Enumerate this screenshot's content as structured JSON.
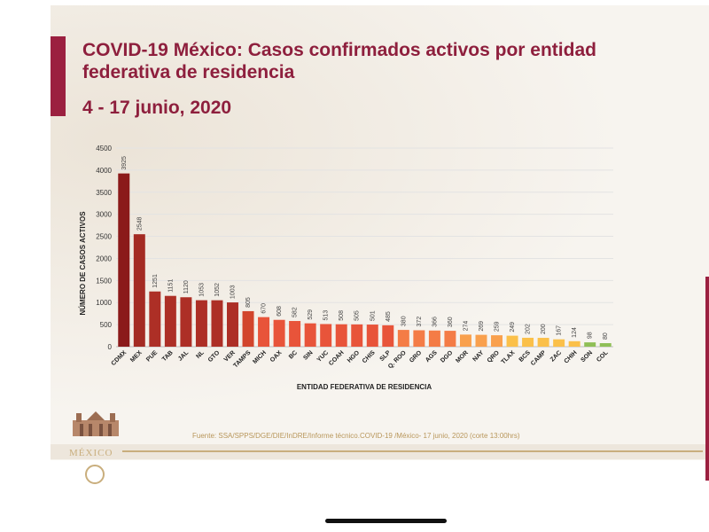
{
  "slide": {
    "title": "COVID-19 México: Casos confirmados activos por entidad federativa de residencia",
    "subtitle": "4 - 17 junio, 2020",
    "source": "Fuente: SSA/SPPS/DGE/DIE/InDRE/Informe técnico.COVID-19 /México- 17 junio, 2020 (corte 13:00hrs)",
    "logo_text": "MÉXICO",
    "colors": {
      "brand": "#9b2040",
      "gold": "#c9ae7d"
    }
  },
  "chart_data": {
    "type": "bar",
    "title": "",
    "xlabel": "ENTIDAD FEDERATIVA DE RESIDENCIA",
    "ylabel": "NÚMERO DE CASOS ACTIVOS",
    "ylim": [
      0,
      4500
    ],
    "yticks": [
      "0",
      "500",
      "1000",
      "1500",
      "2000",
      "2500",
      "3000",
      "3500",
      "4000",
      "4500"
    ],
    "grid": true,
    "categories": [
      "CDMX",
      "MEX",
      "PUE",
      "TAB",
      "JAL",
      "NL",
      "GTO",
      "VER",
      "TAMPS",
      "MICH",
      "OAX",
      "BC",
      "SIN",
      "YUC",
      "COAH",
      "HGO",
      "CHIS",
      "SLP",
      "Q. ROO",
      "GRO",
      "AGS",
      "DGO",
      "MOR",
      "NAY",
      "QRO",
      "TLAX",
      "BCS",
      "CAMP",
      "ZAC",
      "CHIH",
      "SON",
      "COL"
    ],
    "values": [
      3925,
      2548,
      1251,
      1151,
      1120,
      1053,
      1052,
      1003,
      805,
      670,
      608,
      582,
      529,
      513,
      508,
      505,
      501,
      485,
      380,
      372,
      366,
      360,
      274,
      269,
      259,
      249,
      202,
      200,
      167,
      124,
      98,
      80
    ],
    "value_labels": [
      "3925",
      "2548",
      "1251",
      "1151",
      "1120",
      "1053",
      "1052",
      "1003",
      "805",
      "670",
      "608",
      "582",
      "529",
      "513",
      "508",
      "505",
      "501",
      "485",
      "380",
      "372",
      "366",
      "360",
      "274",
      "269",
      "259",
      "249",
      "202",
      "200",
      "167",
      "124",
      "98",
      "80"
    ],
    "colors": [
      "#8b1a1a",
      "#a42b23",
      "#ad2f26",
      "#ad2f26",
      "#ad2f26",
      "#ad2f26",
      "#ad2f26",
      "#ad2f26",
      "#d2452c",
      "#e8543a",
      "#e8543a",
      "#e8543a",
      "#e8543a",
      "#e8543a",
      "#e8543a",
      "#e8543a",
      "#e8543a",
      "#e8543a",
      "#f47c46",
      "#f47c46",
      "#f47c46",
      "#f47c46",
      "#f9a04d",
      "#f9a04d",
      "#f9a04d",
      "#fbc049",
      "#fbc049",
      "#fbc049",
      "#fbc049",
      "#fbc049",
      "#8fbf56",
      "#8fbf56"
    ]
  }
}
